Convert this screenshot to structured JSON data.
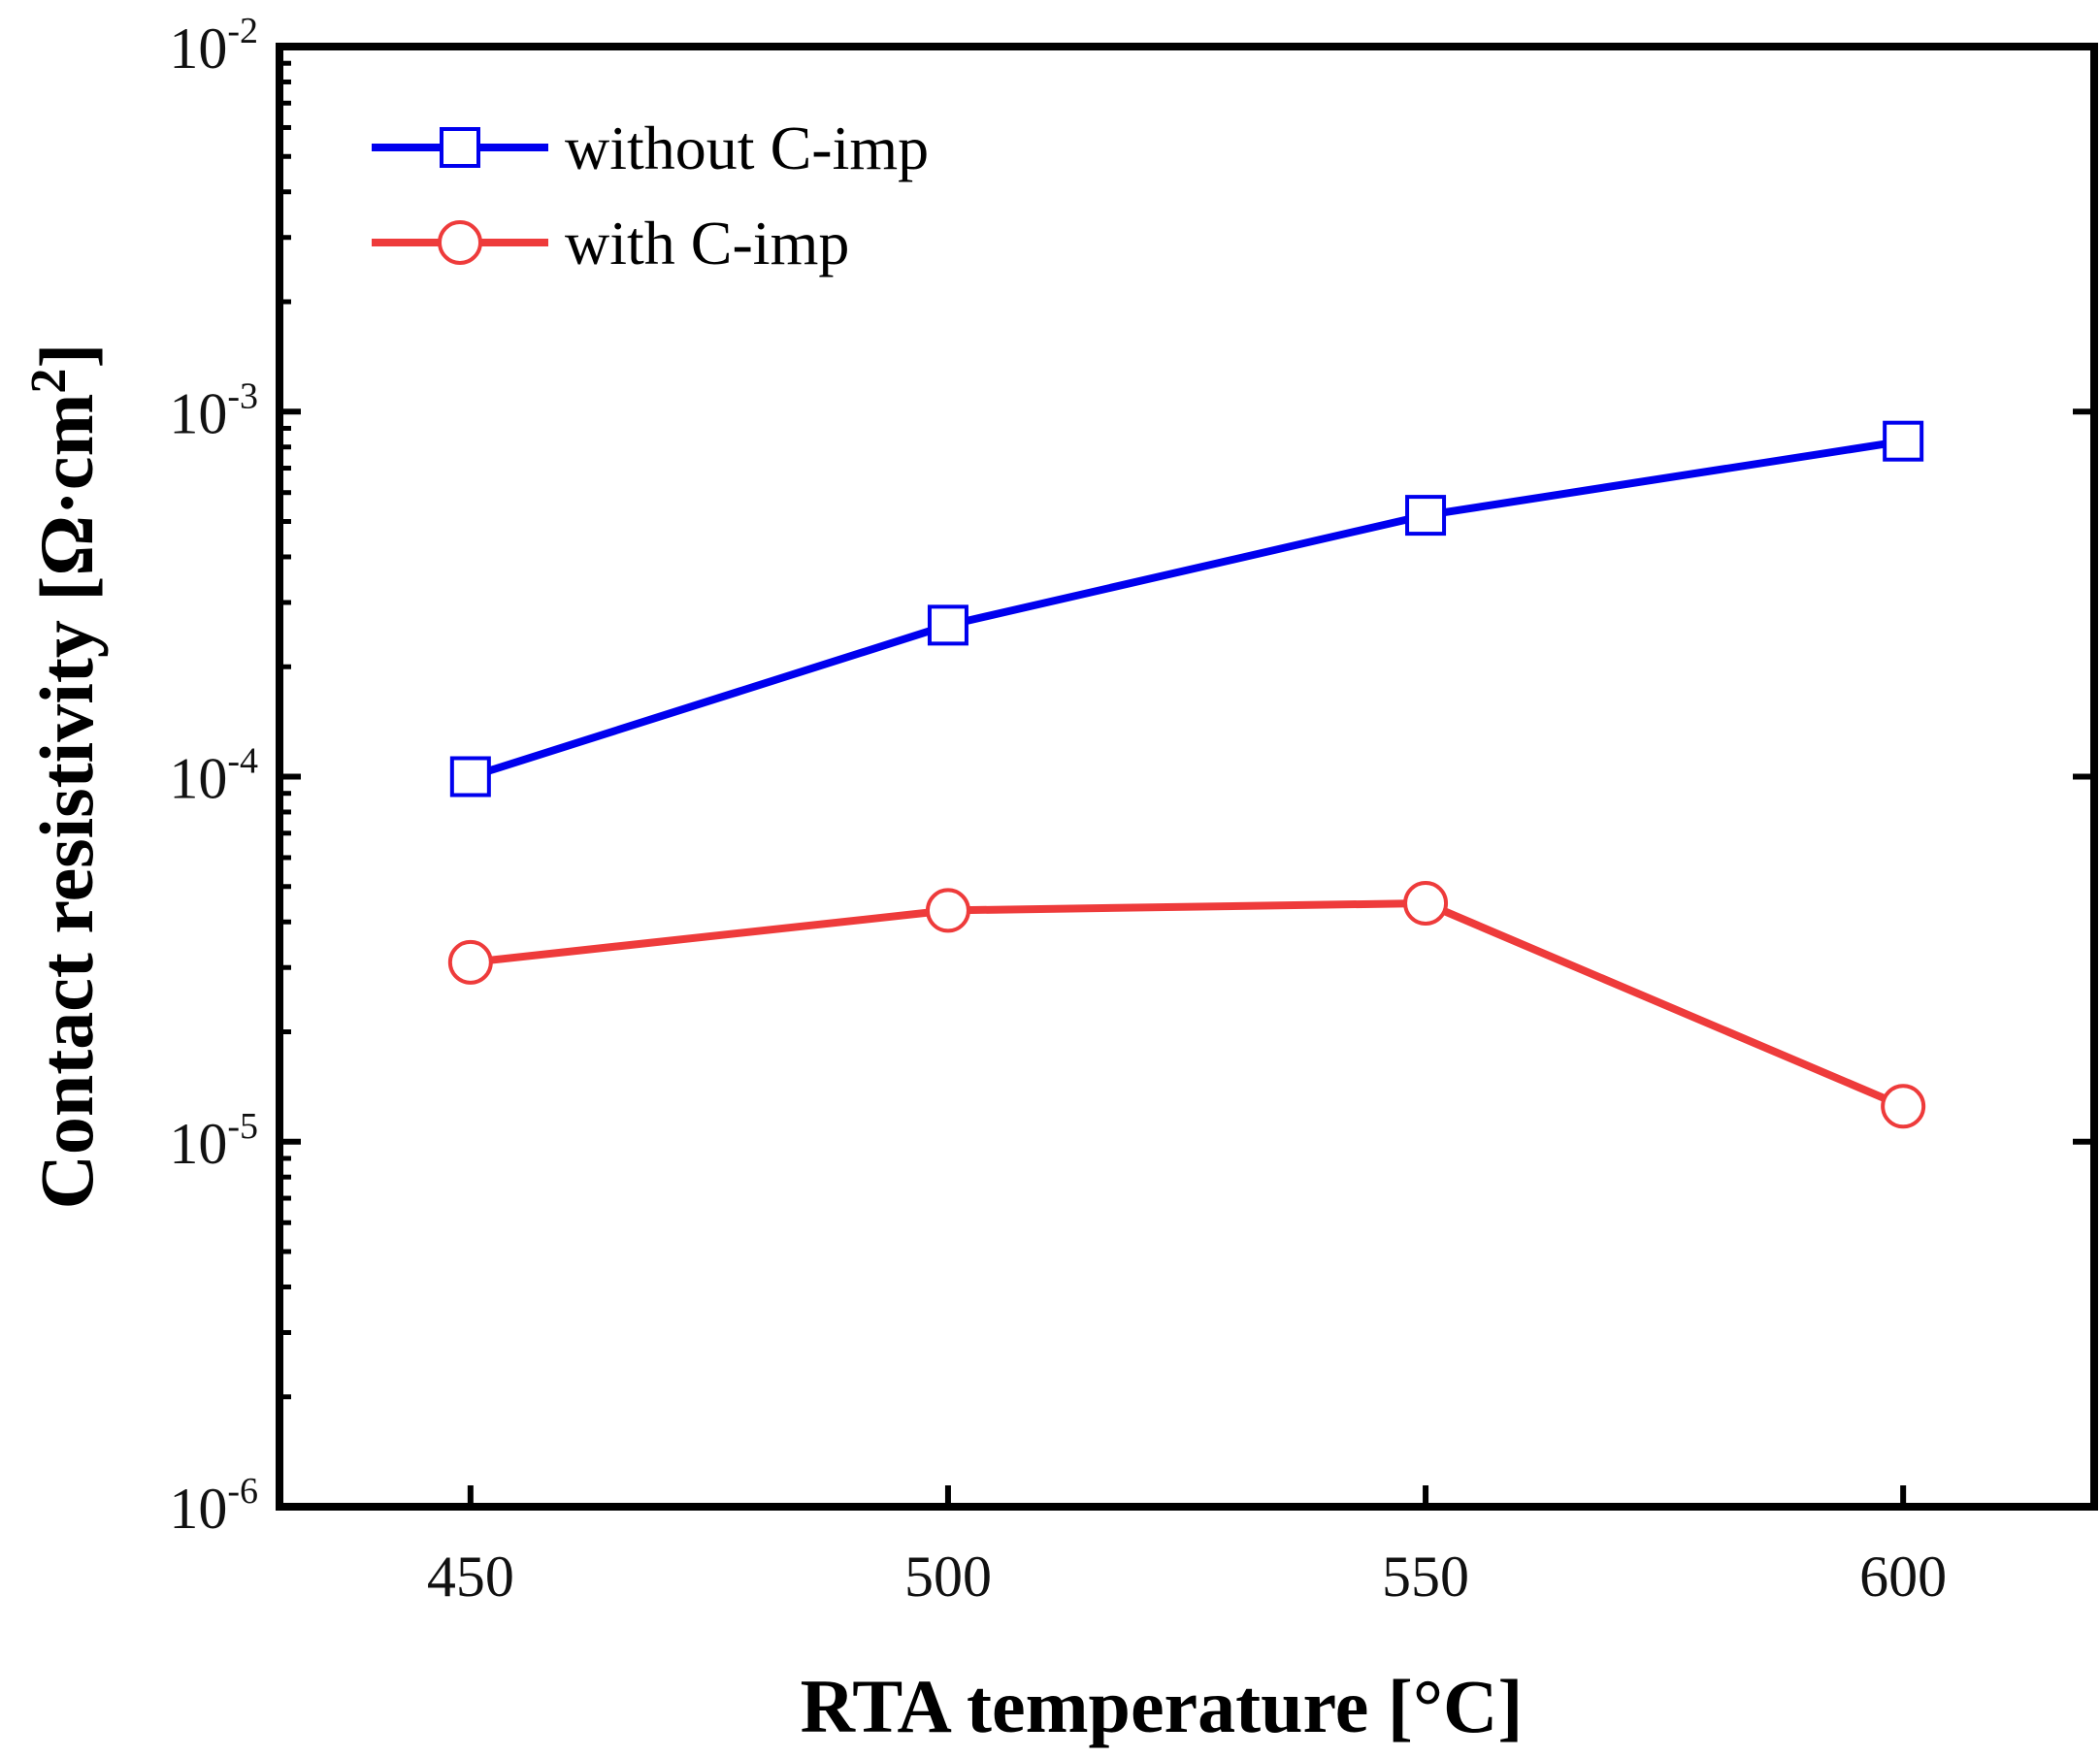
{
  "chart_data": {
    "type": "line",
    "title": "",
    "xlabel": "RTA temperature [°C]",
    "ylabel_main": "Contact resistivity [Ω·cm",
    "ylabel_sup": "2",
    "ylabel_end": "]",
    "yscale": "log",
    "xlim": [
      430,
      620
    ],
    "ylim": [
      1e-06,
      0.01
    ],
    "x": [
      450,
      500,
      550,
      600
    ],
    "x_tick_labels": [
      "450",
      "500",
      "550",
      "600"
    ],
    "y_ticks": [
      {
        "base": "10",
        "exp": "-6",
        "value": 1e-06
      },
      {
        "base": "10",
        "exp": "-5",
        "value": 1e-05
      },
      {
        "base": "10",
        "exp": "-4",
        "value": 0.0001
      },
      {
        "base": "10",
        "exp": "-3",
        "value": 0.001
      },
      {
        "base": "10",
        "exp": "-2",
        "value": 0.01
      }
    ],
    "legend_position": "top-left",
    "series": [
      {
        "name": "without C-imp",
        "marker": "square",
        "color": "#0000ee",
        "values": [
          0.0001,
          0.00026,
          0.00052,
          0.00083
        ]
      },
      {
        "name": "with C-imp",
        "marker": "circle",
        "color": "#ee3b3b",
        "values": [
          3.1e-05,
          4.3e-05,
          4.5e-05,
          1.25e-05
        ]
      }
    ]
  }
}
